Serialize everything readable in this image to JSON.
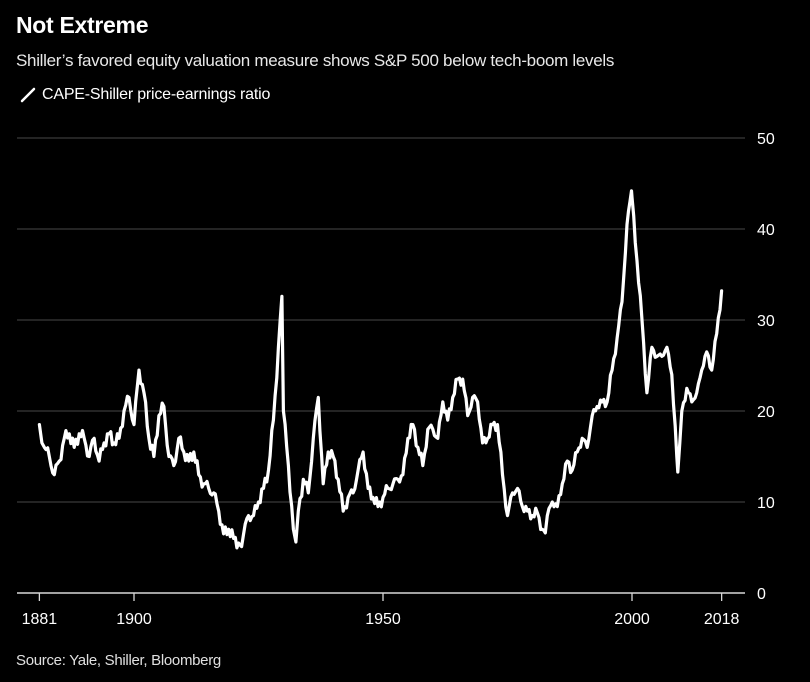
{
  "chart_data": {
    "type": "line",
    "title": "Not Extreme",
    "subtitle": "Shiller’s favored equity valuation measure shows S&P 500 below tech-boom levels",
    "legend": [
      {
        "name": "CAPE-Shiller price-earnings ratio",
        "color": "#ffffff"
      }
    ],
    "legend_position": "top-left",
    "source": "Source: Yale, Shiller, Bloomberg",
    "xlabel": "",
    "ylabel": "",
    "xlim": [
      1878,
      2022
    ],
    "ylim": [
      0,
      50
    ],
    "x_ticks": [
      1881,
      1900,
      1950,
      2000,
      2018
    ],
    "x_tick_labels": [
      "1881",
      "1900",
      "1950",
      "2000",
      "2018"
    ],
    "y_ticks": [
      0,
      10,
      20,
      30,
      40,
      50
    ],
    "y_tick_labels": [
      "0",
      "10",
      "20",
      "30",
      "40",
      "50"
    ],
    "y_axis_side": "right",
    "grid": true,
    "series": [
      {
        "name": "CAPE-Shiller price-earnings ratio",
        "color": "#ffffff",
        "x": [
          1881,
          1881.5,
          1882,
          1883,
          1884,
          1885,
          1886,
          1887,
          1888,
          1889,
          1890,
          1891,
          1892,
          1893,
          1894,
          1895,
          1896,
          1897,
          1898,
          1899,
          1900,
          1901,
          1902,
          1903,
          1904,
          1905,
          1906,
          1907,
          1908,
          1909,
          1910,
          1911,
          1912,
          1913,
          1914,
          1915,
          1916,
          1917,
          1918,
          1919,
          1920,
          1921,
          1921.6,
          1922,
          1923,
          1924,
          1925,
          1926,
          1927,
          1928,
          1929,
          1929.7,
          1930,
          1931,
          1932,
          1932.5,
          1933,
          1934,
          1935,
          1936,
          1937,
          1938,
          1939,
          1940,
          1941,
          1942,
          1943,
          1944,
          1945,
          1946,
          1947,
          1948,
          1949,
          1950,
          1951,
          1952,
          1953,
          1954,
          1955,
          1956,
          1957,
          1958,
          1959,
          1960,
          1961,
          1962,
          1963,
          1964,
          1965,
          1966,
          1967,
          1968,
          1969,
          1970,
          1971,
          1972,
          1973,
          1974,
          1975,
          1976,
          1977,
          1978,
          1979,
          1980,
          1981,
          1982,
          1982.6,
          1983,
          1984,
          1985,
          1986,
          1987,
          1988,
          1989,
          1990,
          1991,
          1992,
          1993,
          1994,
          1995,
          1996,
          1997,
          1998,
          1999,
          1999.9,
          2000,
          2001,
          2002,
          2003,
          2004,
          2005,
          2006,
          2007,
          2008,
          2009,
          2009.2,
          2010,
          2011,
          2012,
          2013,
          2014,
          2015,
          2016,
          2017,
          2018
        ],
        "values": [
          18.5,
          16.5,
          16,
          15,
          13,
          14.5,
          17,
          17.5,
          16,
          17.5,
          17,
          15,
          17,
          14.5,
          16.5,
          17.5,
          16.5,
          17,
          20,
          21.5,
          18.5,
          24.5,
          22,
          17,
          15,
          19.5,
          20.5,
          15,
          14,
          17,
          15.5,
          14.5,
          15.5,
          13,
          12,
          11.5,
          11,
          9,
          6.5,
          7,
          6,
          5.5,
          5.1,
          6.5,
          8.5,
          8.5,
          10,
          11.5,
          13.5,
          19,
          27,
          32.6,
          20,
          14,
          7,
          5.6,
          9,
          12.5,
          11,
          17,
          21.5,
          12,
          15.5,
          15,
          12.5,
          9,
          10.5,
          11,
          13.5,
          15.5,
          11.5,
          10.5,
          9.5,
          10.5,
          11.5,
          12,
          12.5,
          13,
          17,
          18.5,
          16,
          14,
          18,
          18,
          17,
          21,
          19,
          21.5,
          23.5,
          23.5,
          19.5,
          21.5,
          21,
          16.5,
          17,
          18.5,
          18.5,
          13,
          8.5,
          11,
          11.5,
          9.5,
          9,
          8.5,
          8.8,
          7,
          6.6,
          8.5,
          10,
          9.5,
          12,
          14.5,
          13.5,
          15.5,
          17,
          16,
          19.5,
          20.5,
          21,
          21,
          24.5,
          28,
          32,
          40.5,
          44.2,
          43.5,
          36.5,
          30,
          22,
          27,
          26,
          26,
          27,
          24,
          15,
          13.3,
          20,
          22.5,
          21,
          22,
          24.5,
          26.5,
          24.5,
          28.5,
          33.2
        ]
      }
    ]
  }
}
